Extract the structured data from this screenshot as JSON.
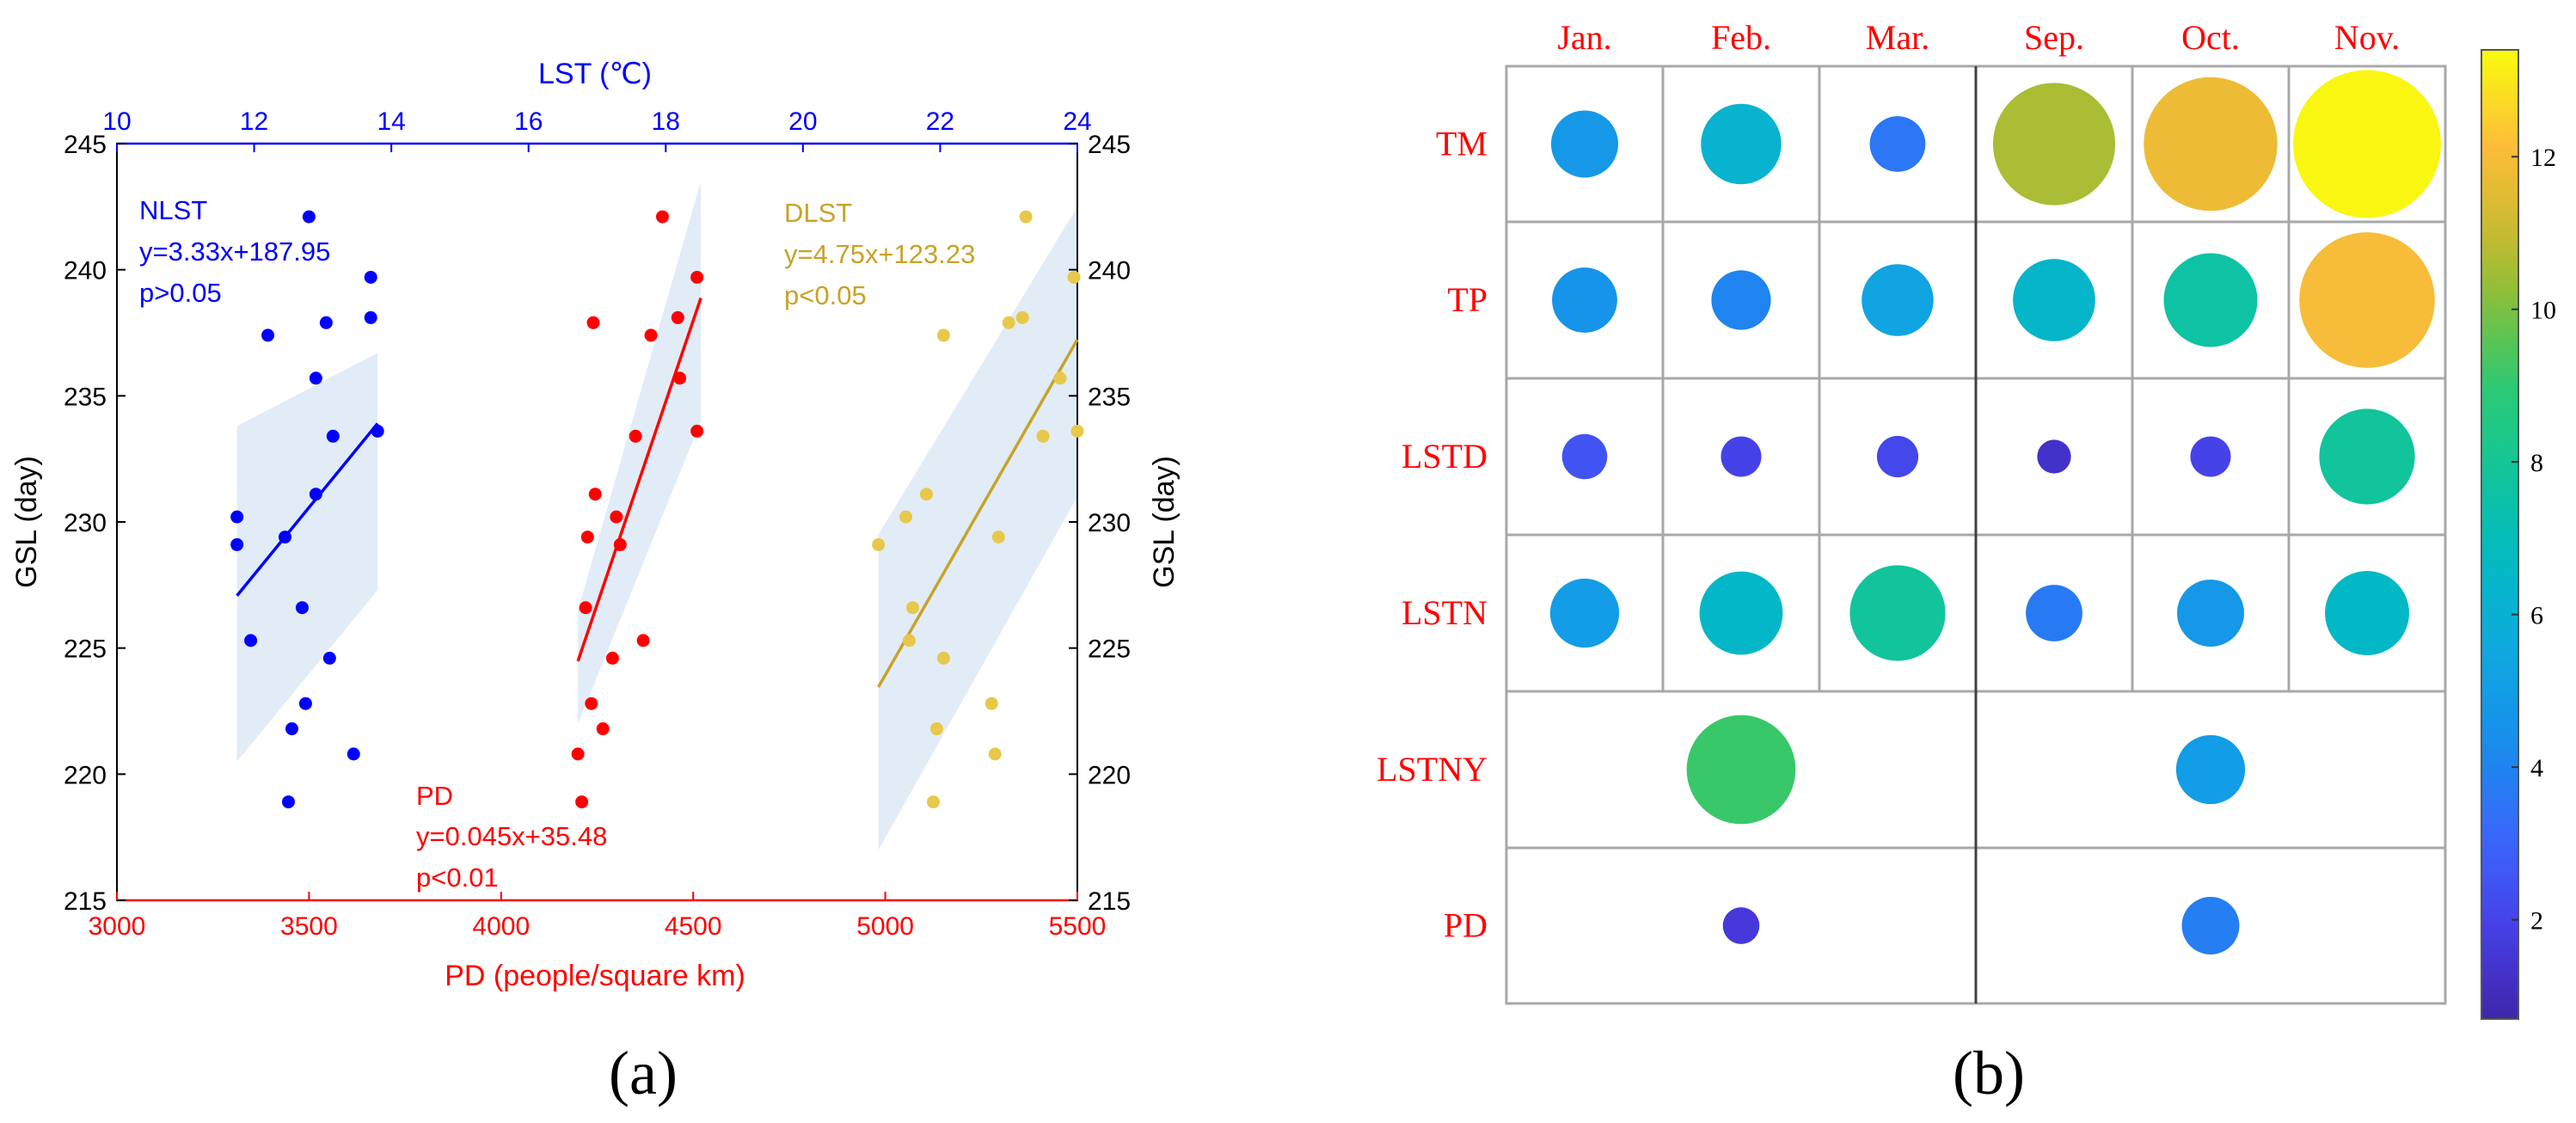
{
  "figure": {
    "panel_a_label": "(a)",
    "panel_b_label": "(b)"
  },
  "colors": {
    "blue": "#0000ff",
    "red": "#ff0000",
    "gold": "#c9a227",
    "dot_gold": "#e8c84a",
    "band": "#dce9f6",
    "black": "#000000"
  },
  "chart_data": [
    {
      "type": "scatter",
      "title": "",
      "ylabel": "GSL (day)",
      "ylabel_right": "GSL (day)",
      "ylim": [
        215,
        245
      ],
      "yticks": [
        215,
        220,
        225,
        230,
        235,
        240,
        245
      ],
      "x_top": {
        "label": "LST (℃)",
        "lim": [
          10,
          24
        ],
        "ticks": [
          10,
          12,
          14,
          16,
          18,
          20,
          22,
          24
        ]
      },
      "x_bottom": {
        "label": "PD (people/square km)",
        "lim": [
          3000,
          5500
        ],
        "ticks": [
          3000,
          3500,
          4000,
          4500,
          5000,
          5500
        ]
      },
      "series": [
        {
          "name": "NLST",
          "axis": "top",
          "color_key": "blue",
          "equation": "y=3.33x+187.95",
          "pvalue": "p>0.05",
          "points": [
            [
              11.75,
              230.2
            ],
            [
              11.75,
              229.1
            ],
            [
              11.95,
              225.3
            ],
            [
              12.2,
              237.4
            ],
            [
              12.45,
              229.4
            ],
            [
              12.5,
              218.9
            ],
            [
              12.55,
              221.8
            ],
            [
              12.7,
              226.6
            ],
            [
              12.75,
              222.8
            ],
            [
              12.8,
              242.1
            ],
            [
              12.9,
              231.1
            ],
            [
              12.9,
              235.7
            ],
            [
              13.05,
              237.9
            ],
            [
              13.1,
              224.6
            ],
            [
              13.15,
              233.4
            ],
            [
              13.45,
              220.8
            ],
            [
              13.7,
              239.7
            ],
            [
              13.7,
              238.1
            ],
            [
              13.8,
              233.6
            ]
          ],
          "fit_x": [
            11.75,
            13.8
          ],
          "band_x": [
            11.75,
            13.8
          ],
          "band_upper": [
            233.8,
            236.7
          ],
          "band_lower": [
            220.5,
            227.3
          ]
        },
        {
          "name": "PD",
          "axis": "bottom",
          "color_key": "red",
          "equation": "y=0.045x+35.48",
          "pvalue": "p<0.01",
          "points": [
            [
              4200,
              220.8
            ],
            [
              4210,
              218.9
            ],
            [
              4220,
              226.6
            ],
            [
              4225,
              229.4
            ],
            [
              4235,
              222.8
            ],
            [
              4240,
              237.9
            ],
            [
              4245,
              231.1
            ],
            [
              4265,
              221.8
            ],
            [
              4290,
              224.6
            ],
            [
              4300,
              230.2
            ],
            [
              4310,
              229.1
            ],
            [
              4350,
              233.4
            ],
            [
              4370,
              225.3
            ],
            [
              4390,
              237.4
            ],
            [
              4420,
              242.1
            ],
            [
              4460,
              238.1
            ],
            [
              4465,
              235.7
            ],
            [
              4510,
              239.7
            ],
            [
              4510,
              233.6
            ]
          ],
          "fit_x": [
            4200,
            4520
          ],
          "band_x": [
            4200,
            4520
          ],
          "band_upper": [
            226.5,
            243.5
          ],
          "band_lower": [
            222.0,
            234.0
          ]
        },
        {
          "name": "DLST",
          "axis": "top",
          "color_key": "gold",
          "dot_color_key": "dot_gold",
          "equation": "y=4.75x+123.23",
          "pvalue": "p<0.05",
          "points": [
            [
              21.1,
              229.1
            ],
            [
              21.5,
              230.2
            ],
            [
              21.6,
              226.6
            ],
            [
              21.55,
              225.3
            ],
            [
              21.8,
              231.1
            ],
            [
              21.9,
              218.9
            ],
            [
              21.95,
              221.8
            ],
            [
              22.05,
              224.6
            ],
            [
              22.05,
              237.4
            ],
            [
              22.75,
              222.8
            ],
            [
              22.8,
              220.8
            ],
            [
              22.85,
              229.4
            ],
            [
              23.0,
              237.9
            ],
            [
              23.2,
              238.1
            ],
            [
              23.25,
              242.1
            ],
            [
              23.5,
              233.4
            ],
            [
              23.75,
              235.7
            ],
            [
              23.95,
              239.7
            ],
            [
              24.0,
              233.6
            ]
          ],
          "fit_x": [
            21.1,
            24.0
          ],
          "band_x": [
            21.1,
            24.0
          ],
          "band_upper": [
            229.5,
            242.5
          ],
          "band_lower": [
            217.0,
            231.0
          ]
        }
      ]
    },
    {
      "type": "heatmap",
      "title": "",
      "columns": [
        "Jan.",
        "Feb.",
        "Mar.",
        "Sep.",
        "Oct.",
        "Nov."
      ],
      "rows": [
        "TM",
        "TP",
        "LSTD",
        "LSTN",
        "LSTNY",
        "PD"
      ],
      "values": [
        [
          4.8,
          6.2,
          3.6,
          10.6,
          11.8,
          13.3
        ],
        [
          4.6,
          4.0,
          5.3,
          6.4,
          7.6,
          12.0
        ],
        [
          2.5,
          2.0,
          2.1,
          1.3,
          2.0,
          7.8
        ],
        [
          5.0,
          6.5,
          7.8,
          3.7,
          4.8,
          6.6
        ],
        [
          null,
          9.2,
          null,
          null,
          5.0,
          null
        ],
        [
          null,
          1.6,
          null,
          null,
          3.8,
          null
        ]
      ],
      "colorbar": {
        "min": 0.7,
        "max": 13.4,
        "ticks": [
          2,
          4,
          6,
          8,
          10,
          12
        ]
      }
    }
  ]
}
